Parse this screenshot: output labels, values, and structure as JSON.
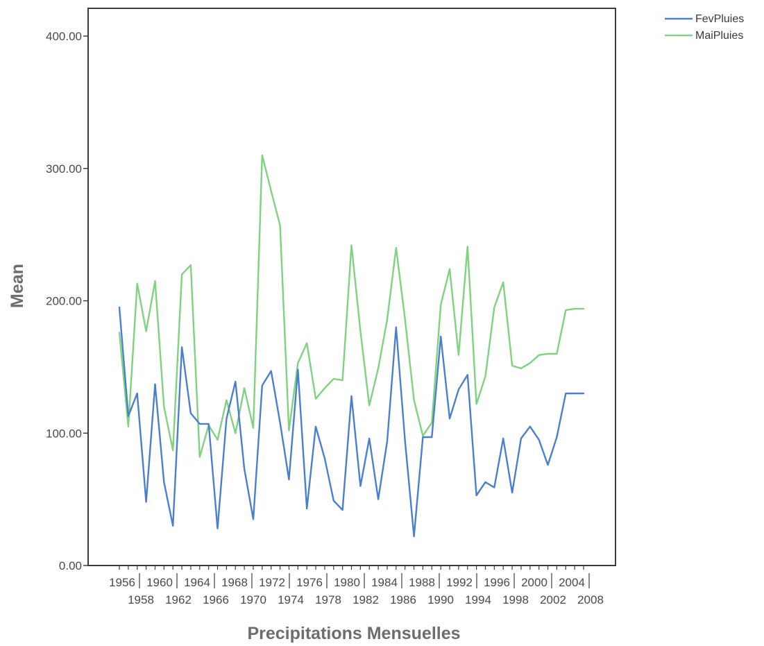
{
  "chart_data": {
    "type": "line",
    "xlabel": "Precipitations Mensuelles",
    "ylabel": "Mean",
    "ylim": [
      0,
      400
    ],
    "y_ticks": [
      "0.00",
      "100.00",
      "200.00",
      "300.00",
      "400.00"
    ],
    "x_tick_labels_upper": [
      "1956",
      "1960",
      "1964",
      "1968",
      "1972",
      "1976",
      "1980",
      "1984",
      "1988",
      "1992",
      "1996",
      "2000",
      "2004"
    ],
    "x_tick_labels_lower": [
      "1958",
      "1962",
      "1966",
      "1970",
      "1974",
      "1978",
      "1982",
      "1986",
      "1990",
      "1994",
      "1998",
      "2002",
      "2008"
    ],
    "x": [
      1956,
      1957,
      1958,
      1959,
      1960,
      1961,
      1962,
      1963,
      1964,
      1965,
      1966,
      1967,
      1968,
      1969,
      1970,
      1971,
      1972,
      1973,
      1974,
      1975,
      1976,
      1977,
      1978,
      1979,
      1980,
      1981,
      1982,
      1983,
      1984,
      1985,
      1986,
      1987,
      1988,
      1989,
      1990,
      1991,
      1992,
      1993,
      1994,
      1995,
      1996,
      1997,
      1998,
      1999,
      2000,
      2001,
      2002,
      2003,
      2004,
      2005,
      2006,
      2007,
      2008
    ],
    "grid": false,
    "legend_position": "top-right",
    "series": [
      {
        "name": "FevPluies",
        "color": "#4a7fd0",
        "values": [
          195,
          113,
          130,
          48,
          137,
          63,
          30,
          165,
          115,
          107,
          107,
          28,
          111,
          139,
          73,
          35,
          136,
          147,
          108,
          65,
          148,
          43,
          105,
          81,
          49,
          42,
          128,
          60,
          96,
          50,
          94,
          180,
          94,
          22,
          97,
          97,
          173,
          111,
          133,
          144,
          53,
          63,
          59,
          96,
          55,
          96,
          105,
          95,
          76,
          97,
          130,
          130,
          130
        ]
      },
      {
        "name": "MaiPluies",
        "color": "#7fd27f",
        "values": [
          176,
          105,
          213,
          177,
          215,
          120,
          87,
          220,
          227,
          82,
          106,
          95,
          125,
          100,
          134,
          104,
          310,
          283,
          257,
          102,
          153,
          168,
          126,
          134,
          141,
          140,
          242,
          177,
          121,
          149,
          186,
          240,
          186,
          125,
          98,
          108,
          197,
          224,
          159,
          241,
          122,
          143,
          195,
          214,
          151,
          149,
          153,
          159,
          160,
          160,
          193,
          194,
          194
        ]
      }
    ]
  }
}
